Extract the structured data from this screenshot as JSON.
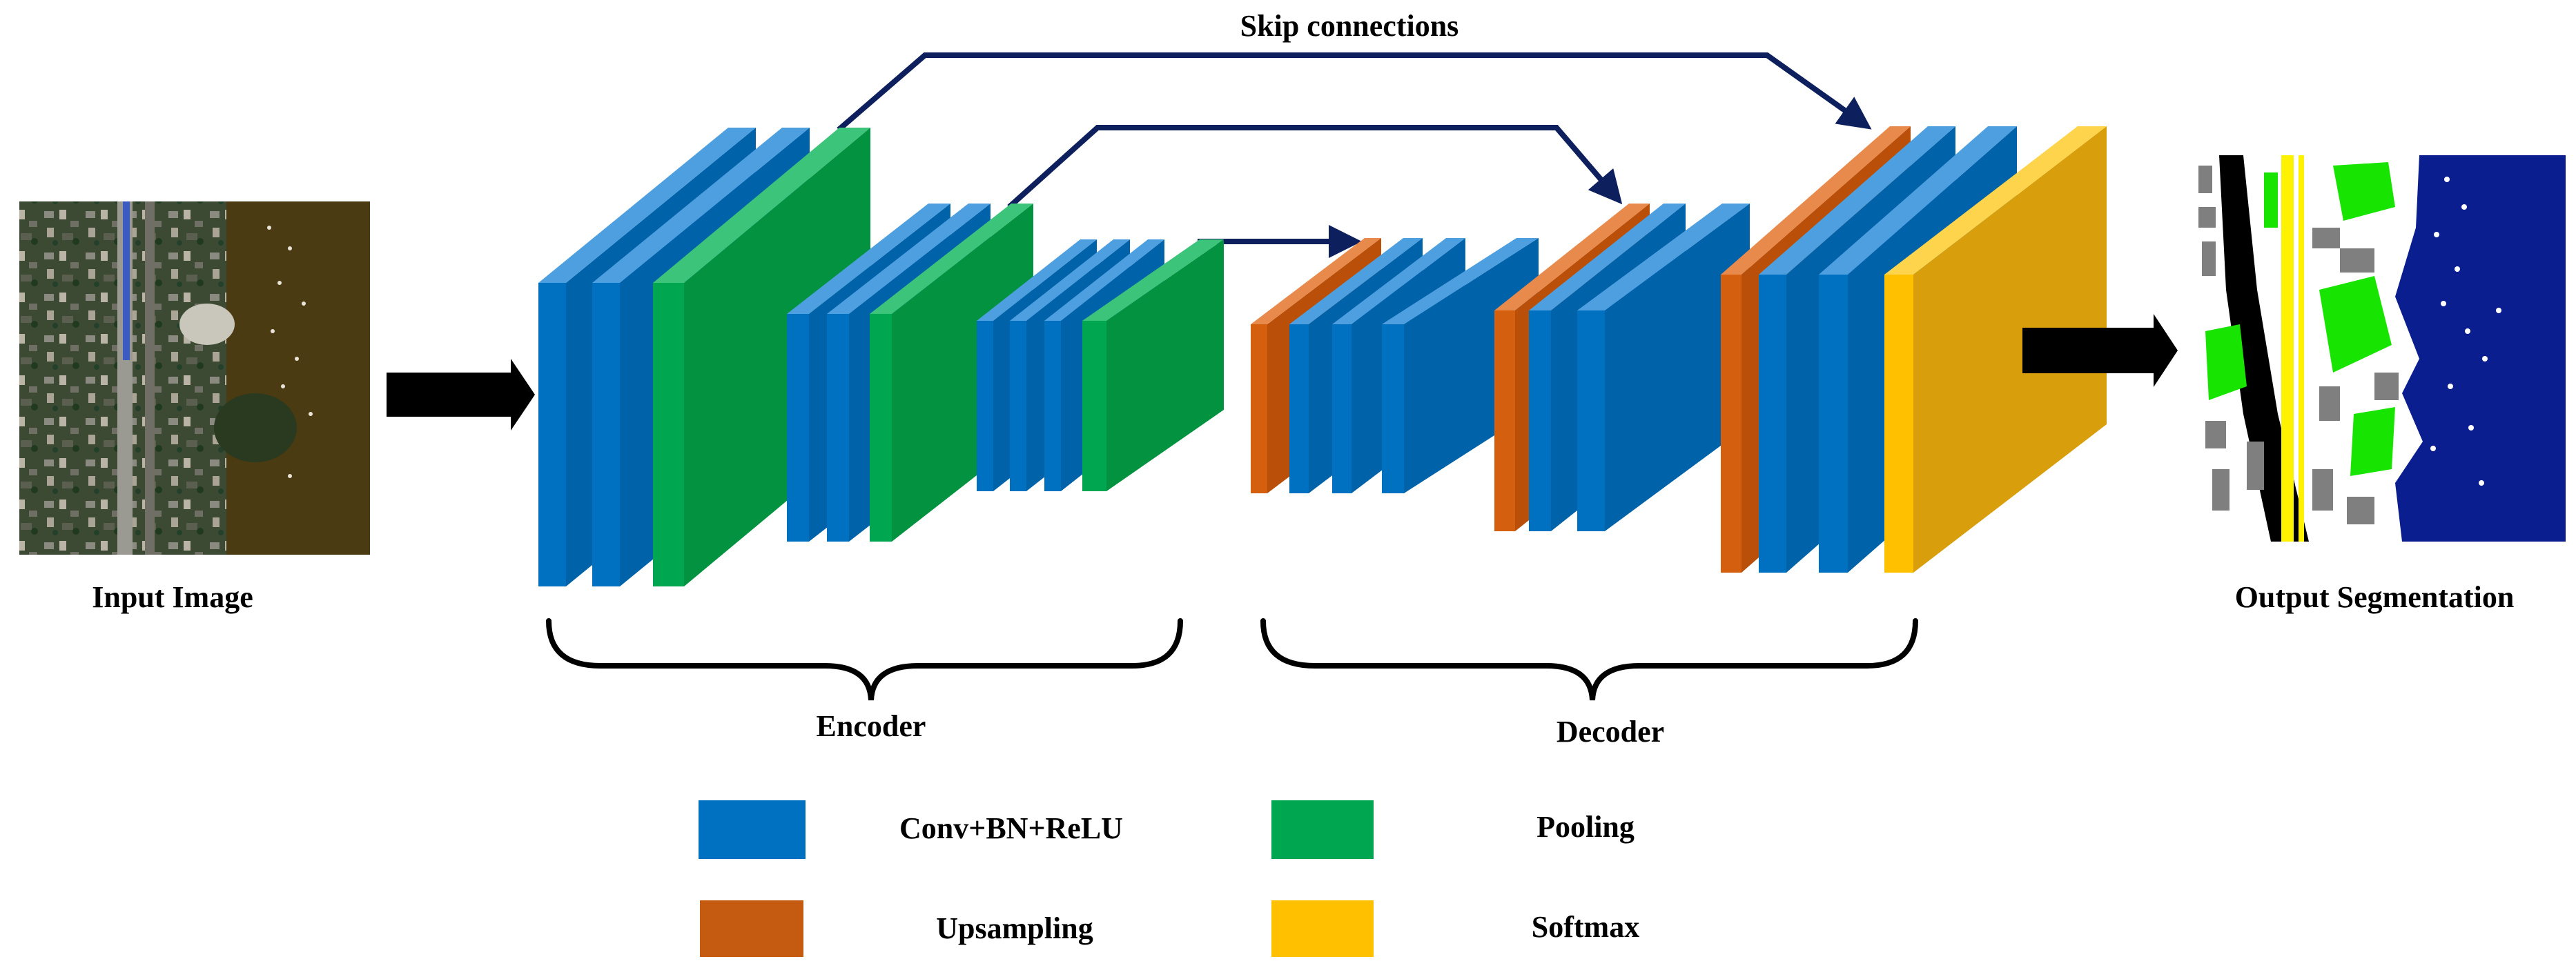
{
  "diagram": {
    "skip_label": "Skip connections",
    "input_label": "Input Image",
    "output_label": "Output Segmentation",
    "encoder_label": "Encoder",
    "decoder_label": "Decoder"
  },
  "legend": {
    "items": [
      {
        "key": "conv",
        "label": "Conv+BN+ReLU",
        "color": "#0070C0"
      },
      {
        "key": "pool",
        "label": "Pooling",
        "color": "#00A650"
      },
      {
        "key": "up",
        "label": "Upsampling",
        "color": "#C55A11"
      },
      {
        "key": "soft",
        "label": "Softmax",
        "color": "#FFC000"
      }
    ]
  },
  "colors": {
    "conv_front": "#0070C0",
    "conv_side": "#0062A8",
    "conv_top": "#4E9FE0",
    "pool_front": "#00A650",
    "pool_side": "#03923F",
    "pool_top": "#3CC47B",
    "up_front": "#D45F0F",
    "up_side": "#B94F09",
    "up_top": "#E98A4D",
    "soft_front": "#FFC000",
    "soft_side": "#D89E0C",
    "soft_top": "#FFD44D",
    "skip_arrow": "#0D1F5C",
    "water": "#0B1E8F",
    "vegetation": "#17E400",
    "road": "#FFF200",
    "building": "#7F7F7F",
    "shadow": "#000000"
  }
}
